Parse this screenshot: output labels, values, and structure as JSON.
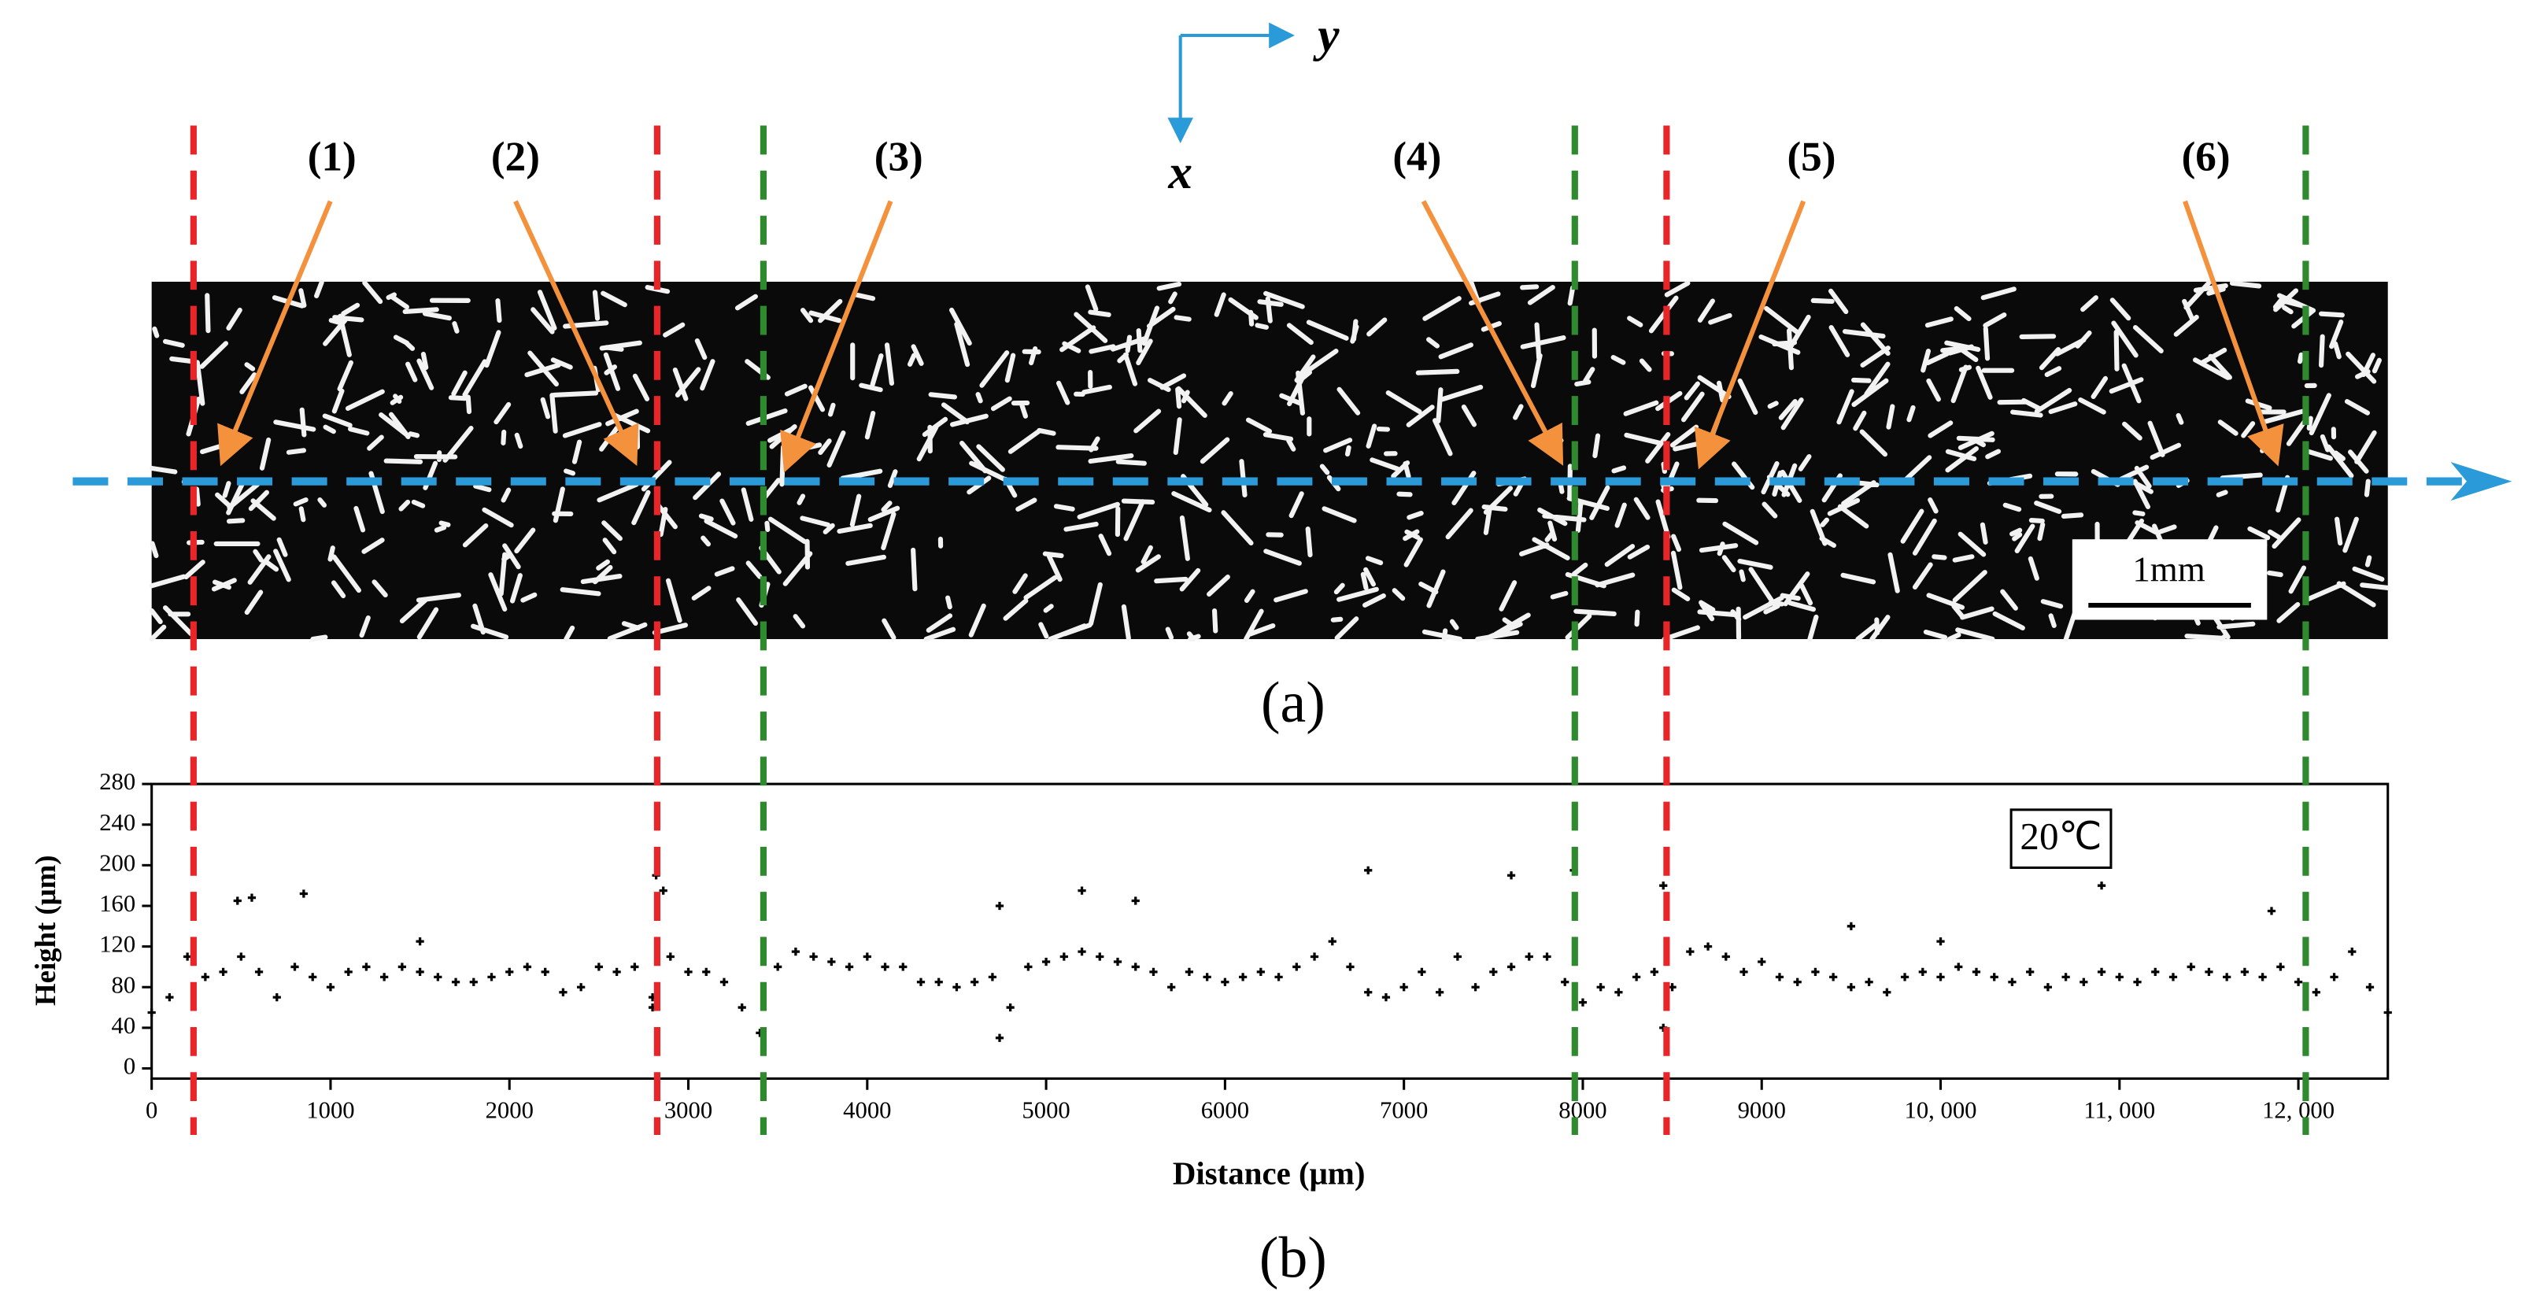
{
  "figure": {
    "axis_names": [
      "y",
      "x"
    ],
    "markers": [
      "(1)",
      "(2)",
      "(3)",
      "(4)",
      "(5)",
      "(6)"
    ],
    "scale_bar": "1mm",
    "panel_a": "(a)",
    "panel_b": "(b)"
  },
  "chart_data": {
    "type": "scatter",
    "xlabel": "Distance (μm)",
    "ylabel": "Height (μm)",
    "annotation": "20℃",
    "xlim": [
      0,
      12500
    ],
    "ylim": [
      -10,
      280
    ],
    "xticks": [
      0,
      1000,
      2000,
      3000,
      4000,
      5000,
      6000,
      7000,
      8000,
      9000,
      {
        "value": 10000,
        "label": "10, 000"
      },
      {
        "value": 11000,
        "label": "11, 000"
      },
      {
        "value": 12000,
        "label": "12, 000"
      }
    ],
    "yticks": [
      0,
      40,
      80,
      120,
      160,
      200,
      240,
      280
    ],
    "series": [
      {
        "name": "Height",
        "color": "#000000",
        "x": [
          0,
          100,
          200,
          300,
          400,
          500,
          600,
          700,
          800,
          900,
          1000,
          1100,
          1200,
          1300,
          1400,
          1500,
          1600,
          1700,
          1800,
          1900,
          2000,
          2100,
          2200,
          2300,
          2400,
          2500,
          2600,
          2700,
          2800,
          2900,
          3000,
          3100,
          3200,
          3300,
          3400,
          3500,
          3600,
          3700,
          3800,
          3900,
          4000,
          4100,
          4200,
          4300,
          4400,
          4500,
          4600,
          4700,
          4800,
          4900,
          5000,
          5100,
          5200,
          5300,
          5400,
          5500,
          5600,
          5700,
          5800,
          5900,
          6000,
          6100,
          6200,
          6300,
          6400,
          6500,
          6600,
          6700,
          6800,
          6900,
          7000,
          7100,
          7200,
          7300,
          7400,
          7500,
          7600,
          7700,
          7800,
          7900,
          8000,
          8100,
          8200,
          8300,
          8400,
          8500,
          8600,
          8700,
          8800,
          8900,
          9000,
          9100,
          9200,
          9300,
          9400,
          9500,
          9600,
          9700,
          9800,
          9900,
          10000,
          10100,
          10200,
          10300,
          10400,
          10500,
          10600,
          10700,
          10800,
          10900,
          11000,
          11100,
          11200,
          11300,
          11400,
          11500,
          11600,
          11700,
          11800,
          11900,
          12000,
          12100,
          12200,
          12300,
          12400,
          12500,
          480,
          560,
          850,
          1500,
          2820,
          2860,
          4740,
          4740,
          5200,
          5500,
          6800,
          7600,
          7950,
          8450,
          10900,
          11850,
          9500,
          10000,
          8450,
          2800
        ],
        "values": [
          55,
          70,
          110,
          90,
          95,
          110,
          95,
          70,
          100,
          90,
          80,
          95,
          100,
          90,
          100,
          95,
          90,
          85,
          85,
          90,
          95,
          100,
          95,
          75,
          80,
          100,
          95,
          100,
          70,
          110,
          95,
          95,
          85,
          60,
          35,
          100,
          115,
          110,
          105,
          100,
          110,
          100,
          100,
          85,
          85,
          80,
          85,
          90,
          60,
          100,
          105,
          110,
          115,
          110,
          105,
          100,
          95,
          80,
          95,
          90,
          85,
          90,
          95,
          90,
          100,
          110,
          125,
          100,
          75,
          70,
          80,
          95,
          75,
          110,
          80,
          95,
          100,
          110,
          110,
          85,
          65,
          80,
          75,
          90,
          95,
          80,
          115,
          120,
          110,
          95,
          105,
          90,
          85,
          95,
          90,
          80,
          85,
          75,
          90,
          95,
          90,
          100,
          95,
          90,
          85,
          95,
          80,
          90,
          85,
          95,
          90,
          85,
          95,
          90,
          100,
          95,
          90,
          95,
          90,
          100,
          85,
          75,
          90,
          115,
          80,
          55,
          165,
          168,
          172,
          125,
          190,
          175,
          160,
          30,
          175,
          165,
          195,
          190,
          195,
          180,
          180,
          155,
          140,
          125,
          40,
          60
        ]
      }
    ]
  }
}
